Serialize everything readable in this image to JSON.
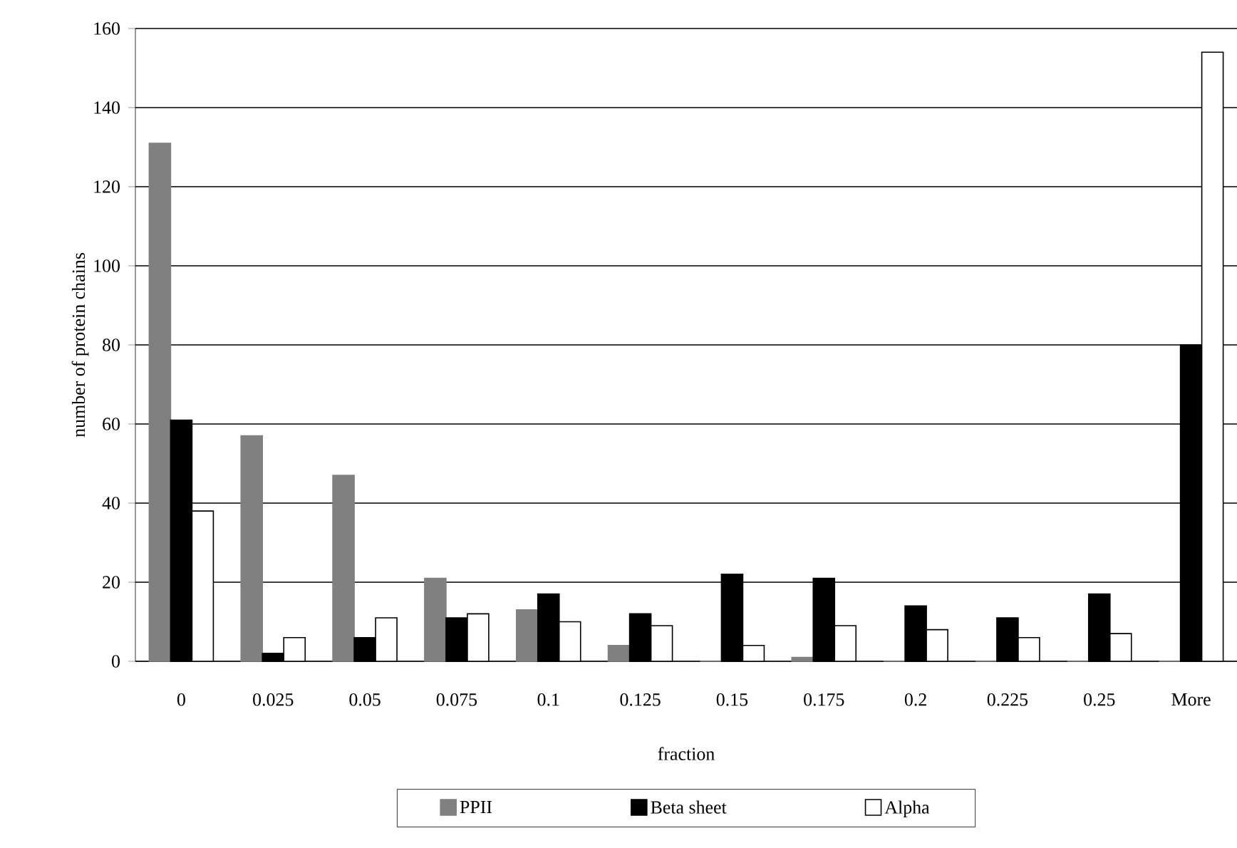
{
  "chart_data": {
    "type": "bar",
    "xlabel": "fraction",
    "ylabel": "number of protein chains",
    "categories": [
      "0",
      "0.025",
      "0.05",
      "0.075",
      "0.1",
      "0.125",
      "0.15",
      "0.175",
      "0.2",
      "0.225",
      "0.25",
      "More"
    ],
    "series": [
      {
        "name": "PPII",
        "color": "#808080",
        "values": [
          131,
          57,
          47,
          21,
          13,
          4,
          0,
          1,
          0,
          0,
          0,
          0
        ]
      },
      {
        "name": "Beta sheet",
        "color": "#000000",
        "values": [
          61,
          2,
          6,
          11,
          17,
          12,
          22,
          21,
          14,
          11,
          17,
          80
        ]
      },
      {
        "name": "Alpha",
        "color": "#ffffff",
        "values": [
          38,
          6,
          11,
          12,
          10,
          9,
          4,
          9,
          8,
          6,
          7,
          154
        ]
      }
    ],
    "ylim": [
      0,
      160
    ],
    "yticks": [
      0,
      20,
      40,
      60,
      80,
      100,
      120,
      140,
      160
    ],
    "grid": "y",
    "legend": "bottom"
  }
}
